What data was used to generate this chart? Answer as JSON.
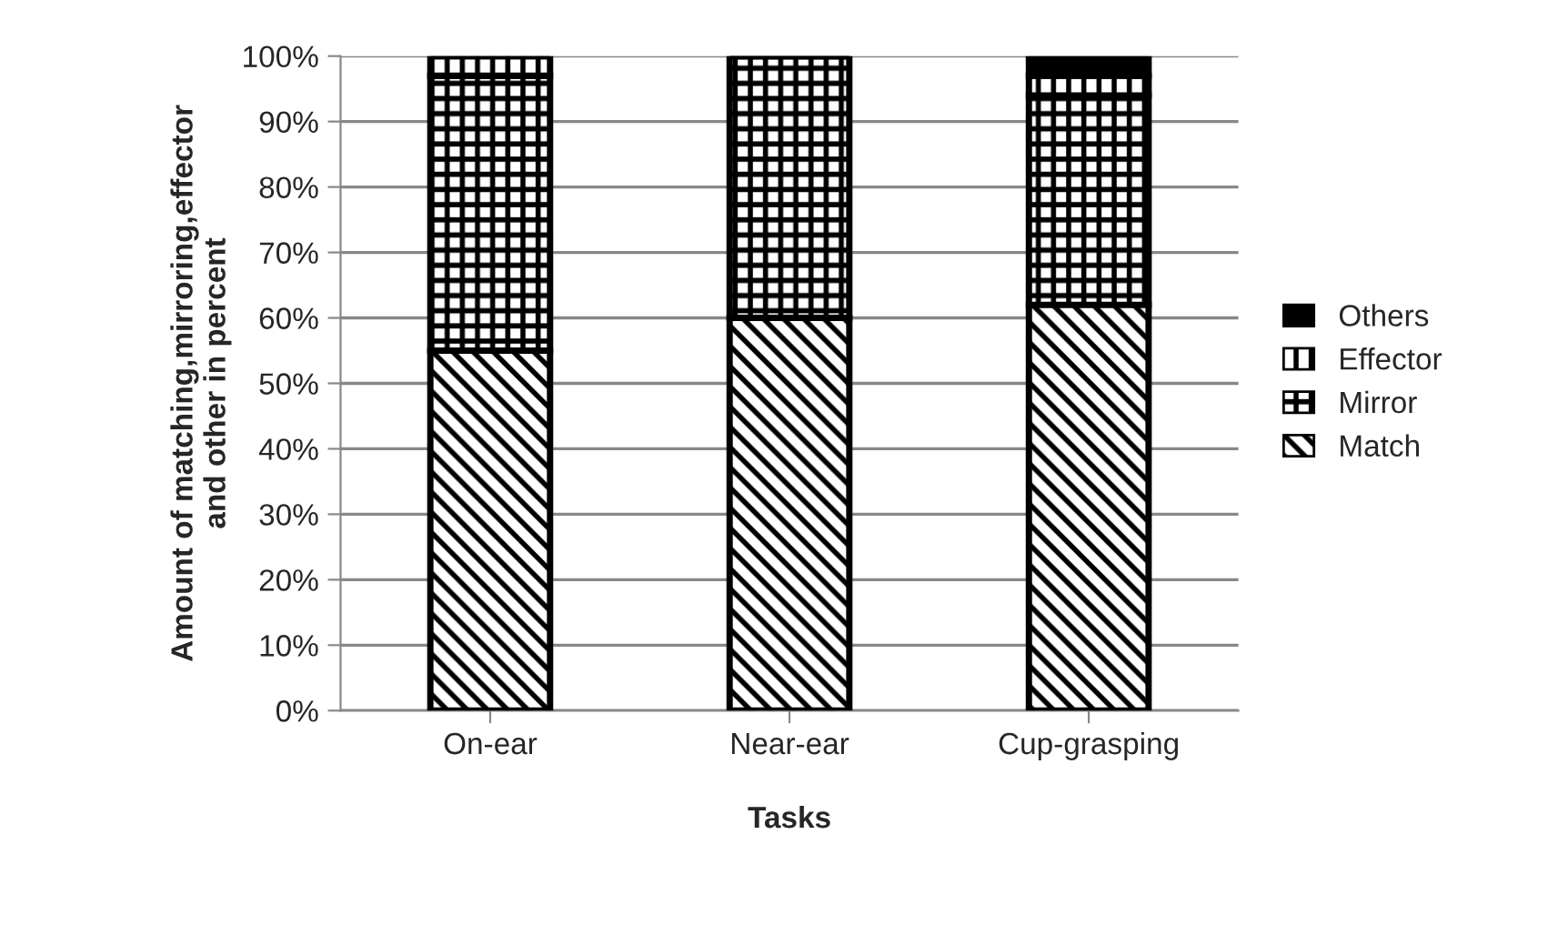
{
  "chart_data": {
    "type": "bar",
    "stacked": true,
    "xlabel": "Tasks",
    "ylabel": "Amount of matching,mirroring,effector\nand other in percent",
    "categories": [
      "On-ear",
      "Near-ear",
      "Cup-grasping"
    ],
    "series": [
      {
        "name": "Match",
        "color": "#000000",
        "values": [
          55,
          60,
          62
        ]
      },
      {
        "name": "Mirror",
        "color": "#000000",
        "values": [
          42,
          40,
          32
        ]
      },
      {
        "name": "Effector",
        "color": "#000000",
        "values": [
          3,
          0,
          3
        ]
      },
      {
        "name": "Others",
        "color": "#000000",
        "values": [
          0,
          0,
          3
        ]
      }
    ],
    "ylim": [
      0,
      100
    ],
    "yticks": [
      {
        "value": 0,
        "label": "0%"
      },
      {
        "value": 10,
        "label": "10%"
      },
      {
        "value": 20,
        "label": "20%"
      },
      {
        "value": 30,
        "label": "30%"
      },
      {
        "value": 40,
        "label": "40%"
      },
      {
        "value": 50,
        "label": "50%"
      },
      {
        "value": 60,
        "label": "60%"
      },
      {
        "value": 70,
        "label": "70%"
      },
      {
        "value": 80,
        "label": "80%"
      },
      {
        "value": 90,
        "label": "90%"
      },
      {
        "value": 100,
        "label": "100%"
      }
    ],
    "grid": "y",
    "legend": "right"
  }
}
